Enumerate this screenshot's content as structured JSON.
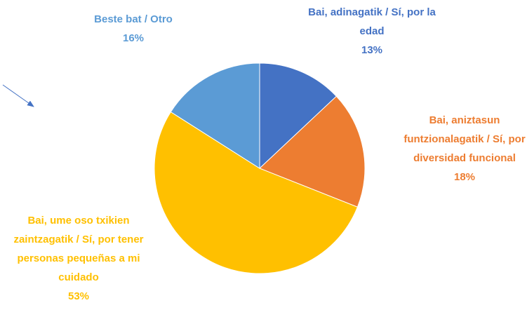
{
  "chart_data": {
    "type": "pie",
    "categories": [
      "Bai, adinagatik / Sí, por la edad",
      "Bai, aniztasun funtzionalagatik / Sí, por diversidad funcional",
      "Bai, ume oso txikien zaintzagatik / Sí, por tener personas pequeñas a mi cuidado",
      "Beste bat / Otro"
    ],
    "values": [
      13,
      18,
      53,
      16
    ],
    "value_labels": [
      "13%",
      "18%",
      "53%",
      "16%"
    ],
    "colors": [
      "#4472c4",
      "#ed7d31",
      "#ffc000",
      "#5b9bd5"
    ]
  }
}
